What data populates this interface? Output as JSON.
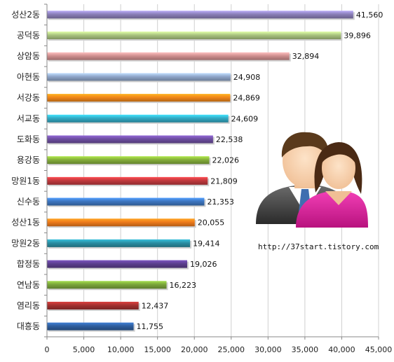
{
  "chart_data": {
    "type": "bar",
    "orientation": "horizontal",
    "categories": [
      "성산2동",
      "공덕동",
      "상암동",
      "아현동",
      "서강동",
      "서교동",
      "도화동",
      "용강동",
      "망원1동",
      "신수동",
      "성산1동",
      "망원2동",
      "합정동",
      "연남동",
      "염리동",
      "대흥동"
    ],
    "values": [
      41560,
      39896,
      32894,
      24908,
      24869,
      24609,
      22538,
      22026,
      21809,
      21353,
      20055,
      19414,
      19026,
      16223,
      12437,
      11755
    ],
    "value_labels": [
      "41,560",
      "39,896",
      "32,894",
      "24,908",
      "24,869",
      "24,609",
      "22,538",
      "22,026",
      "21,809",
      "21,353",
      "20,055",
      "19,414",
      "19,026",
      "16,223",
      "12,437",
      "11,755"
    ],
    "colors": [
      "#8a7fb8",
      "#a9c47f",
      "#d08f8f",
      "#8fa5c9",
      "#f0861a",
      "#31a9c4",
      "#6d4ea0",
      "#84ad3a",
      "#c0393d",
      "#3d76c0",
      "#ee7b1c",
      "#2a8ea3",
      "#5c3f8e",
      "#7aa53a",
      "#a3302f",
      "#2f5e9e"
    ],
    "xlim": [
      0,
      45000
    ],
    "xticks": [
      0,
      5000,
      10000,
      15000,
      20000,
      25000,
      30000,
      35000,
      40000,
      45000
    ],
    "xtick_labels": [
      "0",
      "5,000",
      "10,000",
      "15,000",
      "20,000",
      "25,000",
      "30,000",
      "35,000",
      "40,000",
      "45,000"
    ],
    "grid": true,
    "title": "",
    "xlabel": "",
    "ylabel": ""
  },
  "watermark": {
    "url": "http://37start.tistory.com",
    "icon": "people-icon"
  }
}
